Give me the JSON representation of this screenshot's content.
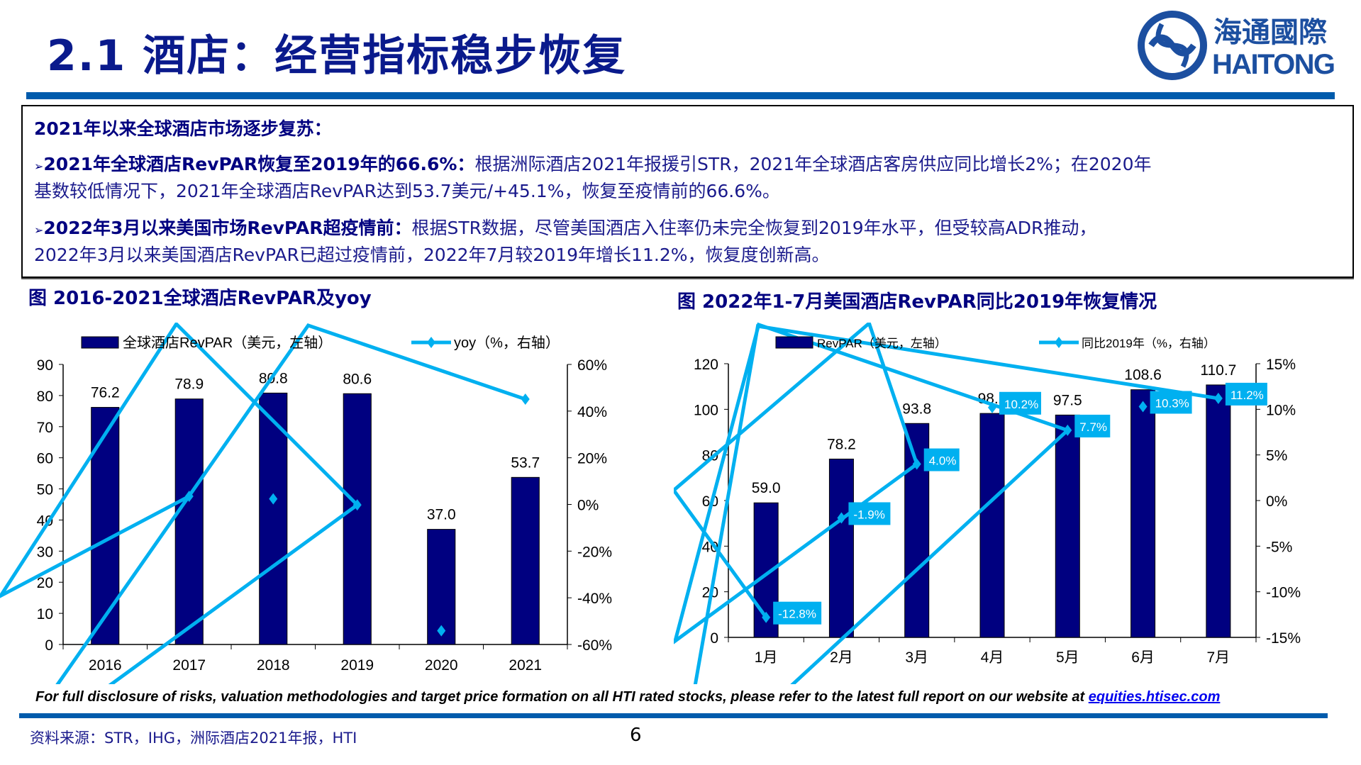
{
  "header": {
    "title": "2.1 酒店：经营指标稳步恢复",
    "logo_cn": "海通國際",
    "logo_en": "HAITONG"
  },
  "summary": {
    "heading": "2021年以来全球酒店市场逐步复苏：",
    "p1_bold": "2021年全球酒店RevPAR恢复至2019年的66.6%：",
    "p1_text": "根据洲际酒店2021年报援引STR，2021年全球酒店客房供应同比增长2%；在2020年",
    "p1_text2": "基数较低情况下，2021年全球酒店RevPAR达到53.7美元/+45.1%，恢复至疫情前的66.6%。",
    "p2_bold": "2022年3月以来美国市场RevPAR超疫情前：",
    "p2_text": "根据STR数据，尽管美国酒店入住率仍未完全恢复到2019年水平，但受较高ADR推动，",
    "p2_text2": "2022年3月以来美国酒店RevPAR已超过疫情前，2022年7月较2019年增长11.2%，恢复度创新高。",
    "bullet": "➢"
  },
  "chart_data": [
    {
      "type": "bar+line",
      "title": "图 2016-2021全球酒店RevPAR及yoy",
      "categories": [
        "2016",
        "2017",
        "2018",
        "2019",
        "2020",
        "2021"
      ],
      "series": [
        {
          "name": "全球酒店RevPAR（美元，左轴）",
          "type": "bar",
          "axis": "left",
          "values": [
            76.2,
            78.9,
            80.8,
            80.6,
            37.0,
            53.7
          ],
          "labels": [
            "76.2",
            "78.9",
            "80.8",
            "80.6",
            "37.0",
            "53.7"
          ],
          "color": "#000080"
        },
        {
          "name": "yoy（%，右轴）",
          "type": "line",
          "axis": "right",
          "values": [
            null,
            3.5,
            2.4,
            -0.2,
            -54.1,
            45.1
          ],
          "color": "#00b0f0"
        }
      ],
      "y_left": {
        "range": [
          0,
          90
        ],
        "ticks": [
          "0",
          "10",
          "20",
          "30",
          "40",
          "50",
          "60",
          "70",
          "80",
          "90"
        ],
        "step": 10
      },
      "y_right": {
        "range": [
          -60,
          60
        ],
        "ticks": [
          "-60%",
          "-40%",
          "-20%",
          "0%",
          "20%",
          "40%",
          "60%"
        ],
        "step": 20
      },
      "legend": "top",
      "grid": false
    },
    {
      "type": "bar+line",
      "title": "图 2022年1-7月美国酒店RevPAR同比2019年恢复情况",
      "categories": [
        "1月",
        "2月",
        "3月",
        "4月",
        "5月",
        "6月",
        "7月"
      ],
      "series": [
        {
          "name": "RevPAR（美元，左轴）",
          "type": "bar",
          "axis": "left",
          "values": [
            59.0,
            78.2,
            93.8,
            98.2,
            97.5,
            108.6,
            110.7
          ],
          "labels": [
            "59.0",
            "78.2",
            "93.8",
            "98.2",
            "97.5",
            "108.6",
            "110.7"
          ],
          "color": "#000080"
        },
        {
          "name": "同比2019年（%，右轴）",
          "type": "line",
          "axis": "right",
          "values": [
            -12.8,
            -1.9,
            4.0,
            10.2,
            7.7,
            10.3,
            11.2
          ],
          "labels": [
            "-12.8%",
            "-1.9%",
            "4.0%",
            "10.2%",
            "7.7%",
            "10.3%",
            "11.2%"
          ],
          "color": "#00b0f0"
        }
      ],
      "y_left": {
        "range": [
          0,
          120
        ],
        "ticks": [
          "0",
          "20",
          "40",
          "60",
          "80",
          "100",
          "120"
        ],
        "step": 20
      },
      "y_right": {
        "range": [
          -15,
          15
        ],
        "ticks": [
          "-15%",
          "-10%",
          "-5%",
          "0%",
          "5%",
          "10%",
          "15%"
        ],
        "step": 5
      },
      "legend": "top",
      "grid": false
    }
  ],
  "footer": {
    "disclaimer": "For full disclosure of risks, valuation methodologies and target price formation on all HTI rated stocks, please refer to the latest full report on our website at ",
    "link": "equities.htisec.com",
    "source": "资料来源：STR，IHG，洲际酒店2021年报，HTI",
    "page": "6"
  }
}
